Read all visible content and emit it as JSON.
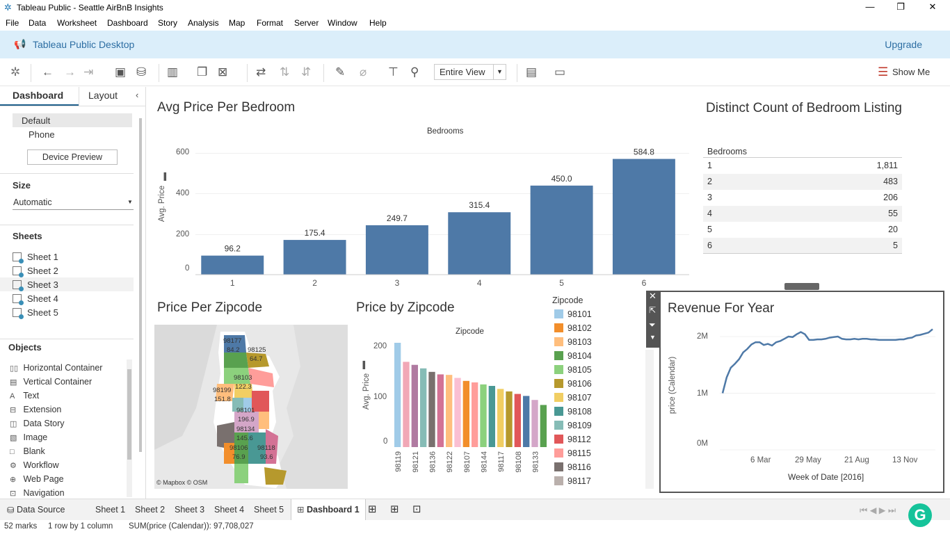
{
  "window": {
    "title": "Tableau Public - Seattle AirBnB Insights",
    "minimize": "—",
    "maximize": "❐",
    "close": "✕"
  },
  "menu": [
    "File",
    "Data",
    "Worksheet",
    "Dashboard",
    "Story",
    "Analysis",
    "Map",
    "Format",
    "Server",
    "Window",
    "Help"
  ],
  "banner": {
    "product": "Tableau Public Desktop",
    "upgrade": "Upgrade"
  },
  "toolbar": {
    "fit": "Entire View",
    "show_me": "Show Me"
  },
  "left_pane": {
    "tabs": {
      "dashboard": "Dashboard",
      "layout": "Layout"
    },
    "device": {
      "default": "Default",
      "phone": "Phone",
      "preview_button": "Device Preview"
    },
    "size": {
      "title": "Size",
      "value": "Automatic"
    },
    "sheets_title": "Sheets",
    "sheets": [
      "Sheet 1",
      "Sheet 2",
      "Sheet 3",
      "Sheet 4",
      "Sheet 5"
    ],
    "objects_title": "Objects",
    "objects": [
      {
        "icon": "horizontal-container-icon",
        "label": "Horizontal Container"
      },
      {
        "icon": "vertical-container-icon",
        "label": "Vertical Container"
      },
      {
        "icon": "text-icon",
        "label": "Text"
      },
      {
        "icon": "extension-icon",
        "label": "Extension"
      },
      {
        "icon": "data-story-icon",
        "label": "Data Story"
      },
      {
        "icon": "image-icon",
        "label": "Image"
      },
      {
        "icon": "blank-icon",
        "label": "Blank"
      },
      {
        "icon": "workflow-icon",
        "label": "Workflow"
      },
      {
        "icon": "web-page-icon",
        "label": "Web Page"
      },
      {
        "icon": "navigation-icon",
        "label": "Navigation"
      }
    ]
  },
  "bar_chart": {
    "title": "Avg Price Per Bedroom",
    "header": "Bedrooms",
    "ylabel": "Avg. Price",
    "yticks": [
      "600",
      "400",
      "200",
      "0"
    ]
  },
  "table": {
    "title": "Distinct Count of Bedroom Listing",
    "header": "Bedrooms",
    "rows": [
      {
        "bedrooms": "1",
        "count": "1,811"
      },
      {
        "bedrooms": "2",
        "count": "483"
      },
      {
        "bedrooms": "3",
        "count": "206"
      },
      {
        "bedrooms": "4",
        "count": "55"
      },
      {
        "bedrooms": "5",
        "count": "20"
      },
      {
        "bedrooms": "6",
        "count": "5"
      }
    ]
  },
  "map": {
    "title": "Price Per Zipcode",
    "credit": "© Mapbox © OSM",
    "labels": [
      "98177",
      "84.2",
      "98125",
      "64.7",
      "98103",
      "122.3",
      "98199",
      "151.8",
      "98101",
      "196.9",
      "98134",
      "145.6",
      "98106",
      "76.9",
      "98118",
      "93.6"
    ]
  },
  "zip_chart": {
    "title": "Price by Zipcode",
    "header": "Zipcode",
    "ylabel": "Avg. Price",
    "yticks": [
      "200",
      "100",
      "0"
    ],
    "xlabels": [
      "98119",
      "98121",
      "98136",
      "98122",
      "98107",
      "98144",
      "98117",
      "98108",
      "98133"
    ]
  },
  "legend": {
    "title": "Zipcode",
    "items": [
      {
        "label": "98101",
        "color": "#a0cbe8"
      },
      {
        "label": "98102",
        "color": "#f28e2b"
      },
      {
        "label": "98103",
        "color": "#ffbe7d"
      },
      {
        "label": "98104",
        "color": "#59a14f"
      },
      {
        "label": "98105",
        "color": "#8cd17d"
      },
      {
        "label": "98106",
        "color": "#b6992d"
      },
      {
        "label": "98107",
        "color": "#f1ce63"
      },
      {
        "label": "98108",
        "color": "#499894"
      },
      {
        "label": "98109",
        "color": "#86bcb6"
      },
      {
        "label": "98112",
        "color": "#e15759"
      },
      {
        "label": "98115",
        "color": "#ff9d9a"
      },
      {
        "label": "98116",
        "color": "#79706e"
      },
      {
        "label": "98117",
        "color": "#bab0ac"
      }
    ]
  },
  "line_chart": {
    "title": "Revenue For Year",
    "ylabel": "price (Calendar)",
    "xlabel": "Week of Date [2016]",
    "yticks": [
      "2M",
      "1M",
      "0M"
    ],
    "xticks": [
      "6 Mar",
      "29 May",
      "21 Aug",
      "13 Nov"
    ]
  },
  "bottom_tabs": {
    "data_source": "Data Source",
    "sheets": [
      "Sheet 1",
      "Sheet 2",
      "Sheet 3",
      "Sheet 4",
      "Sheet 5"
    ],
    "active": "Dashboard 1"
  },
  "status": {
    "marks": "52 marks",
    "rows": "1 row by 1 column",
    "sum": "SUM(price (Calendar)): 97,708,027"
  },
  "chart_data": [
    {
      "type": "bar",
      "title": "Avg Price Per Bedroom",
      "xlabel": "Bedrooms",
      "ylabel": "Avg. Price",
      "categories": [
        "1",
        "2",
        "3",
        "4",
        "5",
        "6"
      ],
      "values": [
        96.2,
        175.4,
        249.7,
        315.4,
        450.0,
        584.8
      ],
      "ylim": [
        0,
        650
      ]
    },
    {
      "type": "bar",
      "title": "Price by Zipcode",
      "xlabel": "Zipcode",
      "ylabel": "Avg. Price",
      "categories": [
        "98119",
        "",
        "98121",
        "",
        "98136",
        "",
        "98122",
        "",
        "98107",
        "",
        "98144",
        "",
        "98117",
        "",
        "98108",
        "",
        "98133",
        ""
      ],
      "values": [
        208,
        170,
        164,
        157,
        150,
        145,
        144,
        138,
        132,
        129,
        125,
        122,
        116,
        111,
        106,
        102,
        94,
        84
      ],
      "colors": [
        "#a0cbe8",
        "#f1a7b6",
        "#b07aa1",
        "#86bcb6",
        "#79706e",
        "#d37295",
        "#ffbe7d",
        "#fabfd2",
        "#f28e2b",
        "#ff9d9a",
        "#8cd17d",
        "#499894",
        "#f1ce63",
        "#b6992d",
        "#e15759",
        "#4e79a7",
        "#d4a6c8",
        "#59a14f"
      ],
      "ylim": [
        0,
        220
      ]
    },
    {
      "type": "line",
      "title": "Revenue For Year",
      "xlabel": "Week of Date [2016]",
      "ylabel": "price (Calendar)",
      "x": [
        "2016-01-04",
        "2016-01-11",
        "2016-01-18",
        "2016-01-25",
        "2016-02-01",
        "2016-02-08",
        "2016-02-15",
        "2016-02-22",
        "2016-02-29",
        "2016-03-07",
        "2016-03-14",
        "2016-03-21",
        "2016-03-28",
        "2016-04-04",
        "2016-04-11",
        "2016-04-18",
        "2016-04-25",
        "2016-05-02",
        "2016-05-09",
        "2016-05-16",
        "2016-05-23",
        "2016-05-30",
        "2016-06-06",
        "2016-06-13",
        "2016-06-20",
        "2016-06-27",
        "2016-07-04",
        "2016-07-11",
        "2016-07-18",
        "2016-07-25",
        "2016-08-01",
        "2016-08-08",
        "2016-08-15",
        "2016-08-22",
        "2016-08-29",
        "2016-09-05",
        "2016-09-12",
        "2016-09-19",
        "2016-09-26",
        "2016-10-03",
        "2016-10-10",
        "2016-10-17",
        "2016-10-24",
        "2016-10-31",
        "2016-11-07",
        "2016-11-14",
        "2016-11-21",
        "2016-11-28",
        "2016-12-05",
        "2016-12-12",
        "2016-12-19",
        "2016-12-26"
      ],
      "values": [
        1.0,
        1.28,
        1.45,
        1.52,
        1.6,
        1.72,
        1.78,
        1.86,
        1.9,
        1.9,
        1.85,
        1.87,
        1.84,
        1.9,
        1.92,
        1.96,
        2.0,
        1.99,
        2.04,
        2.08,
        2.04,
        1.94,
        1.94,
        1.95,
        1.95,
        1.96,
        1.98,
        1.99,
        2.0,
        1.96,
        1.95,
        1.95,
        1.96,
        1.95,
        1.96,
        1.96,
        1.95,
        1.95,
        1.94,
        1.94,
        1.94,
        1.94,
        1.94,
        1.95,
        1.95,
        1.97,
        1.98,
        2.02,
        2.03,
        2.05,
        2.07,
        2.13
      ],
      "yunit": "M",
      "ylim": [
        0,
        2.3
      ]
    }
  ]
}
